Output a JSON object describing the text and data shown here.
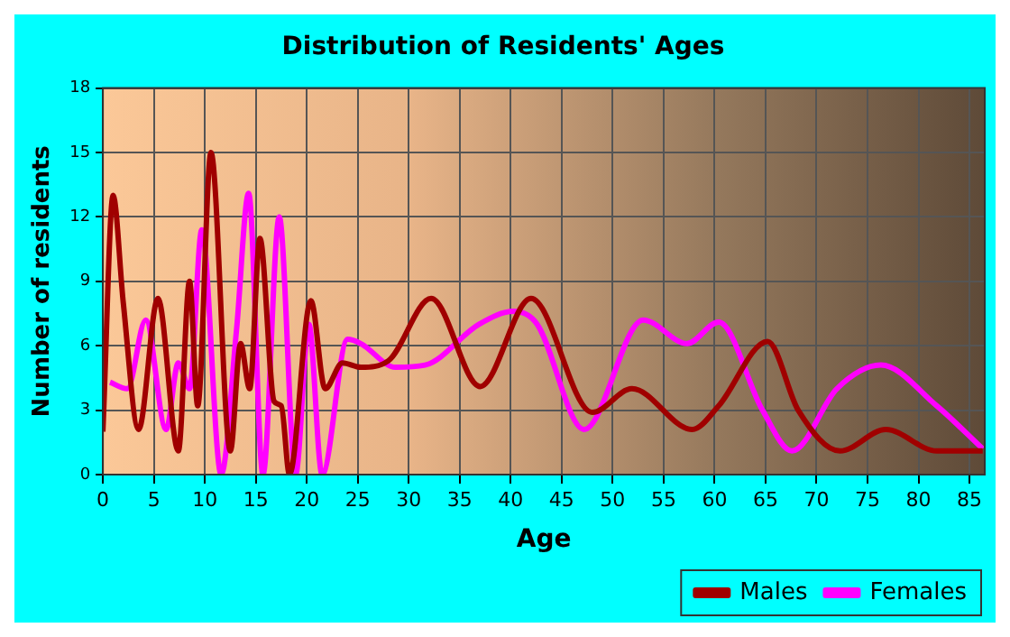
{
  "chart_data": {
    "type": "line",
    "title": "Distribution of Residents' Ages",
    "xlabel": "Age",
    "ylabel": "Number of residents",
    "xlim": [
      0,
      86.5
    ],
    "xticks": [
      0,
      5,
      10,
      15,
      20,
      25,
      30,
      35,
      40,
      45,
      50,
      55,
      60,
      65,
      70,
      75,
      80,
      85
    ],
    "ylim": [
      0,
      18
    ],
    "yticks": [
      0,
      3,
      6,
      9,
      12,
      15,
      18
    ],
    "grid": true,
    "legend": "bottom right",
    "marker": "none",
    "line_style": "solid",
    "series": [
      {
        "name": "Males",
        "color": "#a00000",
        "x": [
          0,
          1,
          2,
          3.5,
          5.4,
          7.4,
          8.5,
          9.3,
          10.6,
          12.5,
          13.5,
          14.4,
          15.4,
          16.8,
          17.5,
          18.3,
          20.4,
          21.8,
          23.5,
          25.3,
          28,
          32.2,
          37,
          42,
          48,
          51.9,
          57.8,
          60.4,
          65.2,
          68.2,
          72.3,
          76.8,
          81.8,
          86.3
        ],
        "values": [
          2,
          13,
          8,
          2.1,
          8.2,
          1.1,
          9,
          3.2,
          15,
          1.1,
          6.1,
          4,
          11,
          3.4,
          3.2,
          0,
          8.1,
          4,
          5.2,
          5,
          5.3,
          8.2,
          4.1,
          8.2,
          2.9,
          4,
          2.1,
          3.2,
          6.2,
          3,
          1.1,
          2.1,
          1.1,
          1.1
        ]
      },
      {
        "name": "Females",
        "color": "#ff00ff",
        "x": [
          0.7,
          2.4,
          4.2,
          6.2,
          7.4,
          8.5,
          9.7,
          11.6,
          13.1,
          14.3,
          15.7,
          17.3,
          18.9,
          20.2,
          21.5,
          24,
          25.3,
          28.7,
          31.6,
          36.9,
          40.3,
          42.6,
          47.2,
          53,
          57.3,
          60.4,
          64.7,
          67.6,
          72,
          76.3,
          81.8,
          86.3
        ],
        "values": [
          4.3,
          4,
          7.2,
          2.1,
          5.2,
          4,
          11.4,
          0,
          6.7,
          13.1,
          0,
          12,
          0,
          7,
          0,
          6.3,
          6.1,
          5,
          5.1,
          7,
          7.6,
          7,
          2.1,
          7.2,
          6.1,
          7.1,
          3,
          1.1,
          4,
          5.1,
          3.2,
          1.2
        ]
      }
    ]
  }
}
